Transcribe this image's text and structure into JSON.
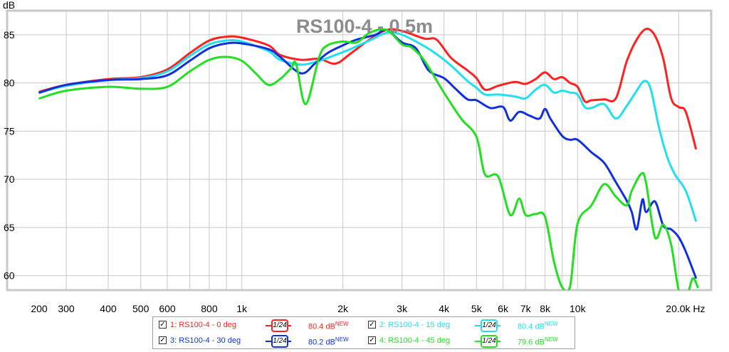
{
  "chart_data": {
    "type": "line",
    "title": "RS100-4 - 0.5m",
    "ylabel": "dB",
    "xlabel": "Hz",
    "xscale": "log",
    "xlim": [
      200,
      25000
    ],
    "ylim": [
      58.5,
      87.5
    ],
    "x_tick_labels": [
      {
        "x": 200,
        "label": "200"
      },
      {
        "x": 300,
        "label": "300"
      },
      {
        "x": 400,
        "label": "400"
      },
      {
        "x": 500,
        "label": "500"
      },
      {
        "x": 600,
        "label": "600"
      },
      {
        "x": 800,
        "label": "800"
      },
      {
        "x": 1000,
        "label": "1k"
      },
      {
        "x": 2000,
        "label": "2k"
      },
      {
        "x": 3000,
        "label": "3k"
      },
      {
        "x": 4000,
        "label": "4k"
      },
      {
        "x": 5000,
        "label": "5k"
      },
      {
        "x": 6000,
        "label": "6k"
      },
      {
        "x": 7000,
        "label": "7k"
      },
      {
        "x": 8000,
        "label": "8k"
      },
      {
        "x": 10000,
        "label": "10k"
      },
      {
        "x": 20000,
        "label": "20.0k Hz"
      }
    ],
    "y_ticks": [
      60,
      65,
      70,
      75,
      80,
      85
    ],
    "grid": true,
    "legend_position": "bottom",
    "series": [
      {
        "name": "1: RS100-4 - 0 deg",
        "color": "#ff2020",
        "smoothing": "1/24",
        "value_label": "80.4 dB",
        "points": [
          [
            250,
            79.1
          ],
          [
            300,
            79.8
          ],
          [
            400,
            80.4
          ],
          [
            500,
            80.6
          ],
          [
            600,
            81.4
          ],
          [
            700,
            83.1
          ],
          [
            800,
            84.4
          ],
          [
            900,
            84.8
          ],
          [
            1000,
            84.7
          ],
          [
            1200,
            83.9
          ],
          [
            1300,
            82.9
          ],
          [
            1500,
            82.4
          ],
          [
            1700,
            82.5
          ],
          [
            1900,
            82.0
          ],
          [
            2100,
            83.0
          ],
          [
            2400,
            84.5
          ],
          [
            2700,
            85.5
          ],
          [
            3000,
            85.4
          ],
          [
            3500,
            84.6
          ],
          [
            3800,
            84.5
          ],
          [
            4200,
            82.6
          ],
          [
            4700,
            81.3
          ],
          [
            5000,
            80.5
          ],
          [
            5300,
            79.3
          ],
          [
            5800,
            79.7
          ],
          [
            6500,
            80.1
          ],
          [
            7000,
            79.9
          ],
          [
            7500,
            80.4
          ],
          [
            8000,
            81.1
          ],
          [
            8500,
            80.4
          ],
          [
            9000,
            80.6
          ],
          [
            9500,
            80.0
          ],
          [
            10000,
            79.6
          ],
          [
            10500,
            78.1
          ],
          [
            11000,
            78.2
          ],
          [
            12000,
            78.3
          ],
          [
            13000,
            78.4
          ],
          [
            14000,
            82.2
          ],
          [
            15000,
            84.5
          ],
          [
            16000,
            85.6
          ],
          [
            17000,
            84.9
          ],
          [
            18000,
            82.5
          ],
          [
            19000,
            78.4
          ],
          [
            20000,
            77.5
          ],
          [
            21000,
            77.0
          ],
          [
            22500,
            73.2
          ]
        ]
      },
      {
        "name": "2: RS100-4 - 15 deg",
        "color": "#20e0f0",
        "smoothing": "1/24",
        "value_label": "80.4 dB",
        "points": [
          [
            250,
            79.0
          ],
          [
            300,
            79.7
          ],
          [
            400,
            80.3
          ],
          [
            500,
            80.5
          ],
          [
            600,
            81.2
          ],
          [
            700,
            82.8
          ],
          [
            800,
            84.0
          ],
          [
            900,
            84.4
          ],
          [
            1000,
            84.3
          ],
          [
            1200,
            83.3
          ],
          [
            1300,
            82.4
          ],
          [
            1500,
            81.9
          ],
          [
            1700,
            82.3
          ],
          [
            1900,
            82.9
          ],
          [
            2100,
            83.5
          ],
          [
            2400,
            84.4
          ],
          [
            2700,
            85.2
          ],
          [
            3000,
            85.0
          ],
          [
            3500,
            83.8
          ],
          [
            3800,
            83.0
          ],
          [
            4200,
            81.8
          ],
          [
            4700,
            80.2
          ],
          [
            5000,
            79.5
          ],
          [
            5300,
            78.8
          ],
          [
            5800,
            78.8
          ],
          [
            6500,
            78.6
          ],
          [
            7000,
            78.4
          ],
          [
            7500,
            79.3
          ],
          [
            8000,
            79.8
          ],
          [
            8500,
            79.0
          ],
          [
            9000,
            79.2
          ],
          [
            9500,
            79.0
          ],
          [
            10000,
            78.8
          ],
          [
            10500,
            77.5
          ],
          [
            11000,
            77.4
          ],
          [
            12000,
            77.8
          ],
          [
            13000,
            76.3
          ],
          [
            14000,
            77.6
          ],
          [
            15000,
            79.2
          ],
          [
            15800,
            80.2
          ],
          [
            16500,
            79.4
          ],
          [
            17500,
            75.3
          ],
          [
            18500,
            72.3
          ],
          [
            19500,
            70.5
          ],
          [
            21000,
            68.8
          ],
          [
            22500,
            65.7
          ]
        ]
      },
      {
        "name": "3: RS100-4 - 30 deg",
        "color": "#1030e0",
        "smoothing": "1/24",
        "value_label": "80.2 dB",
        "points": [
          [
            250,
            79.0
          ],
          [
            300,
            79.8
          ],
          [
            400,
            80.3
          ],
          [
            500,
            80.4
          ],
          [
            600,
            80.8
          ],
          [
            700,
            82.3
          ],
          [
            800,
            83.6
          ],
          [
            900,
            84.1
          ],
          [
            1000,
            84.1
          ],
          [
            1200,
            83.5
          ],
          [
            1300,
            82.7
          ],
          [
            1500,
            81.0
          ],
          [
            1650,
            82.0
          ],
          [
            1800,
            83.1
          ],
          [
            2000,
            83.9
          ],
          [
            2200,
            84.5
          ],
          [
            2500,
            85.0
          ],
          [
            2700,
            85.5
          ],
          [
            3000,
            84.2
          ],
          [
            3300,
            83.6
          ],
          [
            3600,
            81.3
          ],
          [
            4000,
            80.5
          ],
          [
            4300,
            79.5
          ],
          [
            4700,
            78.3
          ],
          [
            5000,
            78.2
          ],
          [
            5500,
            77.4
          ],
          [
            6000,
            77.5
          ],
          [
            6300,
            76.1
          ],
          [
            6700,
            77.0
          ],
          [
            7200,
            76.6
          ],
          [
            7700,
            76.3
          ],
          [
            8000,
            77.3
          ],
          [
            8300,
            76.3
          ],
          [
            9000,
            74.5
          ],
          [
            9500,
            74.1
          ],
          [
            10000,
            74.1
          ],
          [
            11000,
            72.8
          ],
          [
            12000,
            71.7
          ],
          [
            13000,
            69.7
          ],
          [
            14000,
            67.8
          ],
          [
            14500,
            66.6
          ],
          [
            15000,
            64.8
          ],
          [
            15600,
            67.9
          ],
          [
            16000,
            66.6
          ],
          [
            17000,
            67.7
          ],
          [
            18000,
            65.2
          ],
          [
            19000,
            64.8
          ],
          [
            20000,
            64.0
          ],
          [
            21000,
            62.5
          ],
          [
            22500,
            59.8
          ]
        ]
      },
      {
        "name": "4: RS100-4 - 45 deg",
        "color": "#20e020",
        "smoothing": "1/24",
        "value_label": "79.6 dB",
        "points": [
          [
            250,
            78.4
          ],
          [
            300,
            79.2
          ],
          [
            400,
            79.6
          ],
          [
            500,
            79.4
          ],
          [
            600,
            79.6
          ],
          [
            700,
            81.2
          ],
          [
            800,
            82.4
          ],
          [
            900,
            82.7
          ],
          [
            1000,
            82.3
          ],
          [
            1100,
            81.0
          ],
          [
            1200,
            79.8
          ],
          [
            1300,
            80.4
          ],
          [
            1400,
            81.5
          ],
          [
            1450,
            82.0
          ],
          [
            1550,
            77.8
          ],
          [
            1700,
            82.7
          ],
          [
            1800,
            83.9
          ],
          [
            2000,
            84.3
          ],
          [
            2200,
            84.2
          ],
          [
            2400,
            85.2
          ],
          [
            2700,
            85.5
          ],
          [
            3000,
            84.0
          ],
          [
            3200,
            83.7
          ],
          [
            3500,
            82.3
          ],
          [
            4000,
            79.0
          ],
          [
            4500,
            76.3
          ],
          [
            5000,
            74.4
          ],
          [
            5300,
            70.5
          ],
          [
            5800,
            70.3
          ],
          [
            6300,
            66.3
          ],
          [
            6700,
            68.0
          ],
          [
            7000,
            66.3
          ],
          [
            7500,
            66.4
          ],
          [
            8000,
            66.1
          ],
          [
            8500,
            61.5
          ],
          [
            9000,
            58.8
          ],
          [
            9500,
            58.9
          ],
          [
            10000,
            65.4
          ],
          [
            11000,
            67.3
          ],
          [
            12000,
            69.5
          ],
          [
            13000,
            68.2
          ],
          [
            14000,
            67.3
          ],
          [
            14500,
            68.8
          ],
          [
            15500,
            70.6
          ],
          [
            16000,
            69.6
          ],
          [
            17000,
            64.0
          ],
          [
            18000,
            65.3
          ],
          [
            19000,
            63.2
          ],
          [
            20000,
            58.5
          ],
          [
            21000,
            57.5
          ],
          [
            22000,
            59.7
          ],
          [
            22800,
            58.8
          ]
        ]
      }
    ]
  }
}
